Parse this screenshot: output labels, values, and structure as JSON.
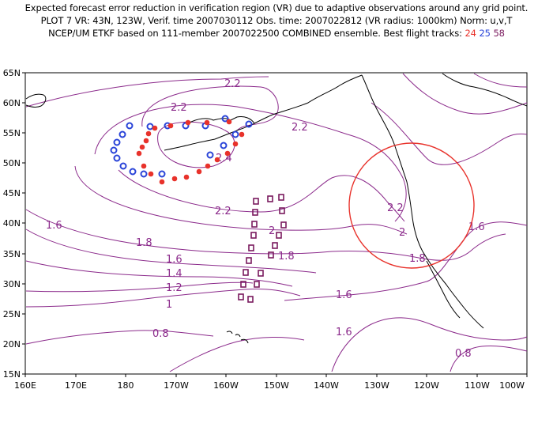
{
  "title": {
    "line1": "Expected forecast error reduction in verification region (VR) due to adaptive observations around any grid point.",
    "line2": "PLOT 7 VR: 43N, 123W, Verif. time 2007030112 Obs. time: 2007022812 (VR radius: 1000km) Norm: u,v,T",
    "line3_prefix": "NCEP/UM ETKF based on 111-member 2007022500 COMBINED ensemble.  Best flight tracks:",
    "track_24": "24",
    "track_25": "25",
    "track_58": "58"
  },
  "colors": {
    "track_24": "#e8322b",
    "track_25": "#2a44d8",
    "track_58": "#7a1a5e",
    "contours": "#8b2a8b",
    "verification_region": "#e8322b"
  },
  "map": {
    "lat_labels": [
      "65N",
      "60N",
      "55N",
      "50N",
      "45N",
      "40N",
      "35N",
      "30N",
      "25N",
      "20N",
      "15N"
    ],
    "lon_labels": [
      "160E",
      "170E",
      "180",
      "170W",
      "160W",
      "150W",
      "140W",
      "130W",
      "120W",
      "110W",
      "100W"
    ],
    "lat_range": [
      15,
      65
    ],
    "lon_range": [
      160,
      260
    ],
    "contour_labels": [
      "2.2",
      "2.2",
      "2.2",
      "2.4",
      "2.2",
      "2.2",
      "2",
      "2",
      "1.6",
      "1.8",
      "1.8",
      "1.8",
      "1.6",
      "1.6",
      "1.4",
      "1.2",
      "1",
      "1.6",
      "1.6",
      "0.8",
      "0.8"
    ],
    "verification_region": {
      "center_lat": 43,
      "center_lon": 237,
      "radius_km": 1000
    }
  }
}
